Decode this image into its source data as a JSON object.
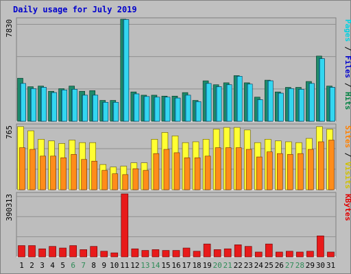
{
  "title": "Daily usage for July 2019",
  "chart_data": [
    {
      "type": "bar",
      "panel": "top",
      "categories": [
        1,
        2,
        3,
        4,
        5,
        6,
        7,
        8,
        9,
        10,
        11,
        12,
        13,
        14,
        15,
        16,
        17,
        18,
        19,
        20,
        21,
        22,
        23,
        24,
        25,
        26,
        27,
        28,
        29,
        30,
        31
      ],
      "ymax_label": "7830",
      "ylim": [
        0,
        7830
      ],
      "legend": [
        {
          "text": "Hits",
          "color": "#008040"
        },
        {
          "text": "Files",
          "color": "#0000cc"
        },
        {
          "text": "Pages",
          "color": "#00d0e0"
        }
      ],
      "series": [
        {
          "name": "Hits",
          "color": "#1e8a6a",
          "values": [
            3300,
            2650,
            2700,
            2300,
            2500,
            2700,
            2300,
            2350,
            1600,
            1600,
            7830,
            2250,
            2000,
            2000,
            1930,
            1930,
            2200,
            1600,
            3100,
            2800,
            2950,
            3500,
            2950,
            1850,
            3150,
            2250,
            2600,
            2600,
            3050,
            5000,
            2700
          ]
        },
        {
          "name": "Files",
          "color": "#33d6f0",
          "values": [
            2900,
            2500,
            2600,
            2200,
            2400,
            2450,
            2000,
            2000,
            1450,
            1450,
            7800,
            2100,
            1900,
            1850,
            1850,
            1780,
            2000,
            1500,
            2900,
            2650,
            2800,
            3450,
            2850,
            1650,
            3100,
            2150,
            2500,
            2450,
            2900,
            4800,
            2600
          ]
        },
        {
          "name": "Pages",
          "color": "#33d6f0",
          "values": [
            2900,
            2500,
            2600,
            2200,
            2400,
            2450,
            2000,
            2000,
            1450,
            1450,
            7800,
            2100,
            1900,
            1850,
            1850,
            1780,
            2000,
            1500,
            2900,
            2650,
            2800,
            3450,
            2850,
            1650,
            3100,
            2150,
            2500,
            2450,
            2900,
            4800,
            2600
          ]
        }
      ]
    },
    {
      "type": "bar",
      "panel": "middle",
      "categories": [
        1,
        2,
        3,
        4,
        5,
        6,
        7,
        8,
        9,
        10,
        11,
        12,
        13,
        14,
        15,
        16,
        17,
        18,
        19,
        20,
        21,
        22,
        23,
        24,
        25,
        26,
        27,
        28,
        29,
        30,
        31
      ],
      "ymax_label": "765",
      "ylim": [
        0,
        765
      ],
      "legend": [
        {
          "text": "Visits",
          "color": "#d0c000"
        },
        {
          "text": "Sites",
          "color": "#ff8000"
        }
      ],
      "series": [
        {
          "name": "Visits",
          "color": "#ffff33",
          "values": [
            750,
            700,
            600,
            580,
            550,
            590,
            560,
            560,
            300,
            270,
            280,
            320,
            320,
            600,
            680,
            640,
            560,
            570,
            600,
            720,
            740,
            740,
            710,
            560,
            600,
            580,
            570,
            560,
            610,
            750,
            720
          ]
        },
        {
          "name": "Sites",
          "color": "#ff8c1a",
          "values": [
            500,
            480,
            400,
            400,
            380,
            420,
            360,
            340,
            230,
            190,
            180,
            250,
            230,
            430,
            480,
            440,
            380,
            380,
            400,
            500,
            500,
            500,
            480,
            390,
            450,
            430,
            420,
            430,
            480,
            570,
            590
          ]
        }
      ]
    },
    {
      "type": "bar",
      "panel": "bottom",
      "categories": [
        1,
        2,
        3,
        4,
        5,
        6,
        7,
        8,
        9,
        10,
        11,
        12,
        13,
        14,
        15,
        16,
        17,
        18,
        19,
        20,
        21,
        22,
        23,
        24,
        25,
        26,
        27,
        28,
        29,
        30,
        31
      ],
      "ymax_label": "390313",
      "ylim": [
        0,
        390313
      ],
      "legend": [
        {
          "text": "KBytes",
          "color": "#e00000"
        }
      ],
      "series": [
        {
          "name": "KBytes",
          "color": "#e81a1a",
          "values": [
            70000,
            70000,
            50000,
            65000,
            55000,
            70000,
            45000,
            65000,
            35000,
            25000,
            390313,
            50000,
            40000,
            45000,
            40000,
            40000,
            55000,
            35000,
            80000,
            45000,
            50000,
            75000,
            65000,
            30000,
            80000,
            30000,
            35000,
            30000,
            35000,
            130000,
            30000
          ]
        }
      ]
    }
  ],
  "x_tick_colors": [
    "#000000",
    "#000000",
    "#000000",
    "#000000",
    "#000000",
    "#2e8b57",
    "#2e8b57",
    "#000000",
    "#000000",
    "#000000",
    "#000000",
    "#000000",
    "#2e8b57",
    "#2e8b57",
    "#000000",
    "#000000",
    "#000000",
    "#000000",
    "#000000",
    "#2e8b57",
    "#2e8b57",
    "#000000",
    "#000000",
    "#000000",
    "#000000",
    "#000000",
    "#2e8b57",
    "#2e8b57",
    "#000000",
    "#000000",
    "#000000"
  ]
}
